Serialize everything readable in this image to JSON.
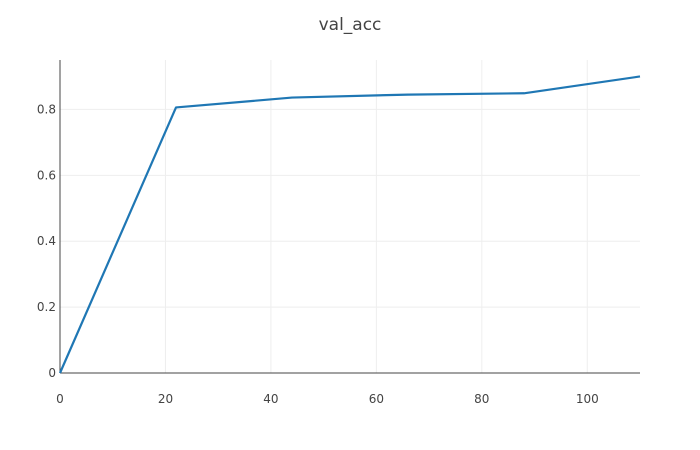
{
  "chart_data": {
    "type": "line",
    "title": "val_acc",
    "xlabel": "",
    "ylabel": "",
    "xlim": [
      0,
      110
    ],
    "ylim": [
      0,
      0.95
    ],
    "grid": true,
    "x_ticks": [
      0,
      20,
      40,
      60,
      80,
      100
    ],
    "y_ticks": [
      0,
      0.2,
      0.4,
      0.6,
      0.8
    ],
    "x_tick_labels": [
      "0",
      "20",
      "40",
      "60",
      "80",
      "100"
    ],
    "y_tick_labels": [
      "0",
      "0.2",
      "0.4",
      "0.6",
      "0.8"
    ],
    "series": [
      {
        "color": "#1f77b4",
        "x": [
          0,
          22,
          44,
          66,
          88,
          110
        ],
        "y": [
          0,
          0.806,
          0.836,
          0.845,
          0.849,
          0.9
        ]
      }
    ]
  }
}
